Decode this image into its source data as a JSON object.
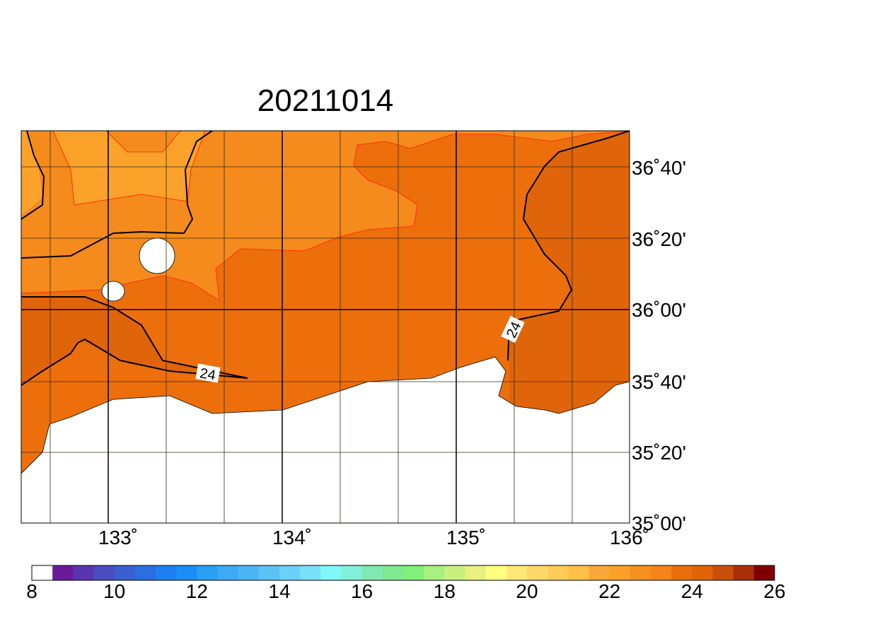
{
  "title": "20211014",
  "lon_labels": [
    "133˚",
    "134˚",
    "135˚",
    "136˚"
  ],
  "lat_labels": [
    "36˚40'",
    "36˚20'",
    "36˚00'",
    "35˚40'",
    "35˚20'",
    "35˚00'"
  ],
  "contour_labels": [
    "24",
    "24"
  ],
  "colorbar": {
    "ticks": [
      8,
      10,
      12,
      14,
      16,
      18,
      20,
      22,
      24,
      26
    ],
    "colors": [
      "#ffffff",
      "#6a1b9a",
      "#5a35b0",
      "#4a4cc0",
      "#3a5fd0",
      "#2a6ee0",
      "#1e7ff0",
      "#1a8ef5",
      "#2aa0f5",
      "#3caaf5",
      "#4cb6f5",
      "#5cc2f5",
      "#6cd0f8",
      "#78e0f8",
      "#80f8f8",
      "#80f0d8",
      "#80e8b0",
      "#80e890",
      "#80f078",
      "#a8f080",
      "#c8f080",
      "#e8f080",
      "#ffff80",
      "#ffe878",
      "#ffd868",
      "#ffcc58",
      "#ffc048",
      "#f8a838",
      "#f8a028",
      "#f59020",
      "#f58518",
      "#e86e0c",
      "#e06408",
      "#c85008",
      "#a83008",
      "#800000"
    ]
  }
}
